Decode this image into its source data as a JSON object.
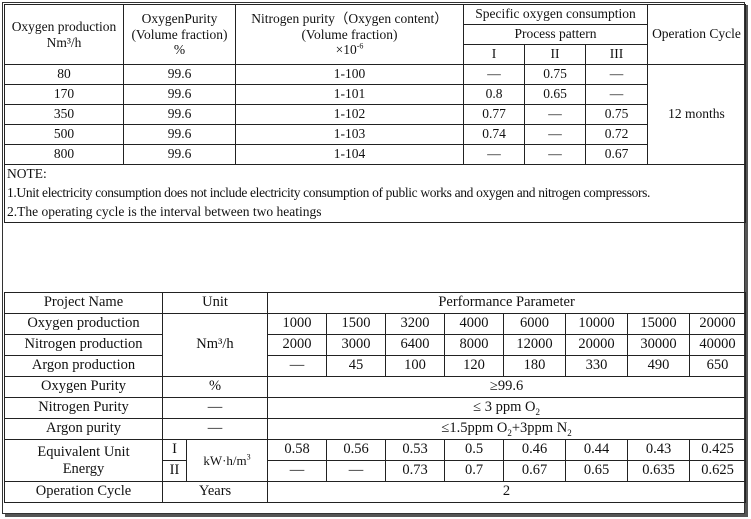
{
  "table1": {
    "headers": {
      "oxygen_production": "Oxygen production",
      "oxygen_production_unit": "Nm³/h",
      "oxygen_purity": "OxygenPurity",
      "oxygen_purity_sub": "(Volume fraction)",
      "oxygen_purity_unit": "%",
      "nitrogen_purity": "Nitrogen purity（Oxygen content）",
      "nitrogen_purity_sub": "(Volume fraction)",
      "nitrogen_purity_unit_base": "×10",
      "nitrogen_purity_unit_exp": "-6",
      "specific_consumption": "Specific oxygen consumption",
      "process_pattern": "Process pattern",
      "pattern_1": "I",
      "pattern_2": "II",
      "pattern_3": "III",
      "operation_cycle": "Operation Cycle"
    },
    "rows": [
      {
        "prod": "80",
        "purity": "99.6",
        "n2": "1-100",
        "p1": "—",
        "p2": "0.75",
        "p3": "—"
      },
      {
        "prod": "170",
        "purity": "99.6",
        "n2": "1-101",
        "p1": "0.8",
        "p2": "0.65",
        "p3": "—"
      },
      {
        "prod": "350",
        "purity": "99.6",
        "n2": "1-102",
        "p1": "0.77",
        "p2": "—",
        "p3": "0.75"
      },
      {
        "prod": "500",
        "purity": "99.6",
        "n2": "1-103",
        "p1": "0.74",
        "p2": "—",
        "p3": "0.72"
      },
      {
        "prod": "800",
        "purity": "99.6",
        "n2": "1-104",
        "p1": "—",
        "p2": "—",
        "p3": "0.67"
      }
    ],
    "cycle_value": "12 months",
    "note_title": "NOTE:",
    "note_1": "1.Unit electricity consumption does not include electricity consumption of public works and oxygen and nitrogen compressors.",
    "note_2": "2.The operating cycle is the interval between two heatings"
  },
  "table2": {
    "headers": {
      "project_name": "Project Name",
      "unit": "Unit",
      "performance": "Performance Parameter"
    },
    "oxygen_production": {
      "label": "Oxygen production",
      "values": [
        "1000",
        "1500",
        "3200",
        "4000",
        "6000",
        "10000",
        "15000",
        "20000"
      ]
    },
    "nitrogen_production": {
      "label": "Nitrogen production",
      "values": [
        "2000",
        "3000",
        "6400",
        "8000",
        "12000",
        "20000",
        "30000",
        "40000"
      ]
    },
    "argon_production": {
      "label": "Argon production",
      "values": [
        "—",
        "45",
        "100",
        "120",
        "180",
        "330",
        "490",
        "650"
      ]
    },
    "production_unit": "Nm³/h",
    "oxygen_purity": {
      "label": "Oxygen Purity",
      "unit": "%",
      "value": "≥99.6"
    },
    "nitrogen_purity": {
      "label": "Nitrogen Purity",
      "unit": "—",
      "value_pre": "≤ 3 ppm O",
      "value_sub": "2"
    },
    "argon_purity": {
      "label": "Argon purity",
      "unit": "—",
      "value_pre": "≤1.5ppm O",
      "value_sub1": "2",
      "value_mid": "+3ppm N",
      "value_sub2": "2"
    },
    "energy": {
      "label_1": "Equivalent Unit",
      "label_2": "Energy",
      "pattern_1": "I",
      "pattern_2": "II",
      "unit_base": "kW·h/m",
      "unit_exp": "3",
      "row_1": [
        "0.58",
        "0.56",
        "0.53",
        "0.5",
        "0.46",
        "0.44",
        "0.43",
        "0.425"
      ],
      "row_2": [
        "—",
        "—",
        "0.73",
        "0.7",
        "0.67",
        "0.65",
        "0.635",
        "0.625"
      ]
    },
    "operation_cycle": {
      "label": "Operation Cycle",
      "unit": "Years",
      "value": "2"
    }
  }
}
